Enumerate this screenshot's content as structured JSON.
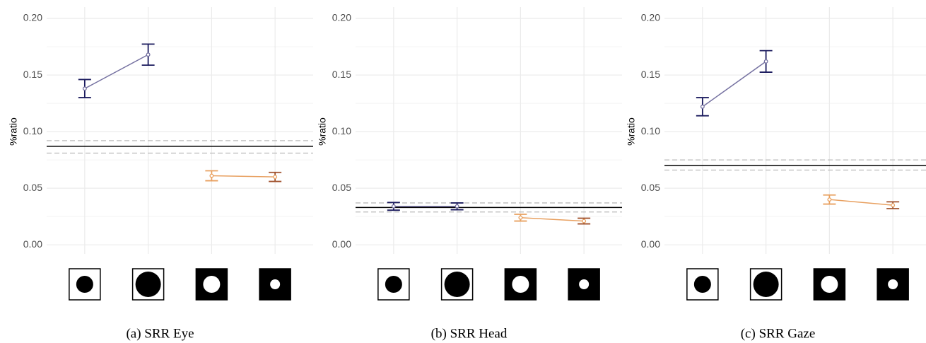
{
  "chart_data": [
    {
      "type": "line",
      "caption": "(a) SRR Eye",
      "y_label": "%ratio",
      "categories": [
        null,
        null,
        null,
        null
      ],
      "series": [
        {
          "color": "#7470a0",
          "values": [
            0.138,
            0.168,
            null,
            null
          ],
          "errors": [
            0.008,
            0.0093,
            null,
            null
          ],
          "error_colors": [
            "#1b1b5e",
            "#1b1b5e",
            null,
            null
          ]
        },
        {
          "color": "#e8a060",
          "values": [
            null,
            null,
            0.061,
            0.06
          ],
          "errors": [
            null,
            null,
            0.0044,
            0.004
          ],
          "error_colors": [
            null,
            null,
            "#e8a060",
            "#a0522d"
          ]
        }
      ],
      "reference_line": 0.087,
      "reference_band": [
        0.081,
        0.092
      ],
      "ylim": [
        -0.008,
        0.21
      ],
      "yticks": [
        {
          "value": 0,
          "label": "0.00"
        },
        0.05,
        {
          "value": 0.1,
          "label": "0.10"
        },
        0.15,
        {
          "value": 0.2,
          "label": "0.20"
        }
      ],
      "grid": true
    },
    {
      "type": "line",
      "caption": "(b) SRR Head",
      "y_label": "%ratio",
      "categories": [
        null,
        null,
        null,
        null
      ],
      "series": [
        {
          "color": "#7470a0",
          "values": [
            0.034,
            0.034,
            null,
            null
          ],
          "errors": [
            0.0034,
            0.003,
            null,
            null
          ],
          "error_colors": [
            "#1b1b5e",
            "#1b1b5e",
            null,
            null
          ]
        },
        {
          "color": "#e8a060",
          "values": [
            null,
            null,
            0.024,
            0.021
          ],
          "errors": [
            null,
            null,
            0.003,
            0.0025
          ],
          "error_colors": [
            null,
            null,
            "#e8a060",
            "#a0522d"
          ]
        }
      ],
      "reference_line": 0.033,
      "reference_band": [
        0.029,
        0.037
      ],
      "ylim": [
        -0.008,
        0.21
      ],
      "yticks": [
        {
          "value": 0,
          "label": "0.00"
        },
        0.05,
        {
          "value": 0.1,
          "label": "0.10"
        },
        0.15,
        {
          "value": 0.2,
          "label": "0.20"
        }
      ],
      "grid": true
    },
    {
      "type": "line",
      "caption": "(c) SRR Gaze",
      "y_label": "%ratio",
      "categories": [
        null,
        null,
        null,
        null
      ],
      "series": [
        {
          "color": "#7470a0",
          "values": [
            0.122,
            0.162,
            null,
            null
          ],
          "errors": [
            0.008,
            0.0095,
            null,
            null
          ],
          "error_colors": [
            "#1b1b5e",
            "#1b1b5e",
            null,
            null
          ]
        },
        {
          "color": "#e8a060",
          "values": [
            null,
            null,
            0.04,
            0.035
          ],
          "errors": [
            null,
            null,
            0.004,
            0.003
          ],
          "error_colors": [
            null,
            null,
            "#e8a060",
            "#a0522d"
          ]
        }
      ],
      "reference_line": 0.07,
      "reference_band": [
        0.066,
        0.075
      ],
      "ylim": [
        -0.008,
        0.21
      ],
      "yticks": [
        {
          "value": 0,
          "label": "0.00"
        },
        0.05,
        {
          "value": 0.1,
          "label": "0.10"
        },
        0.15,
        {
          "value": 0.2,
          "label": "0.20"
        }
      ],
      "grid": true
    }
  ]
}
